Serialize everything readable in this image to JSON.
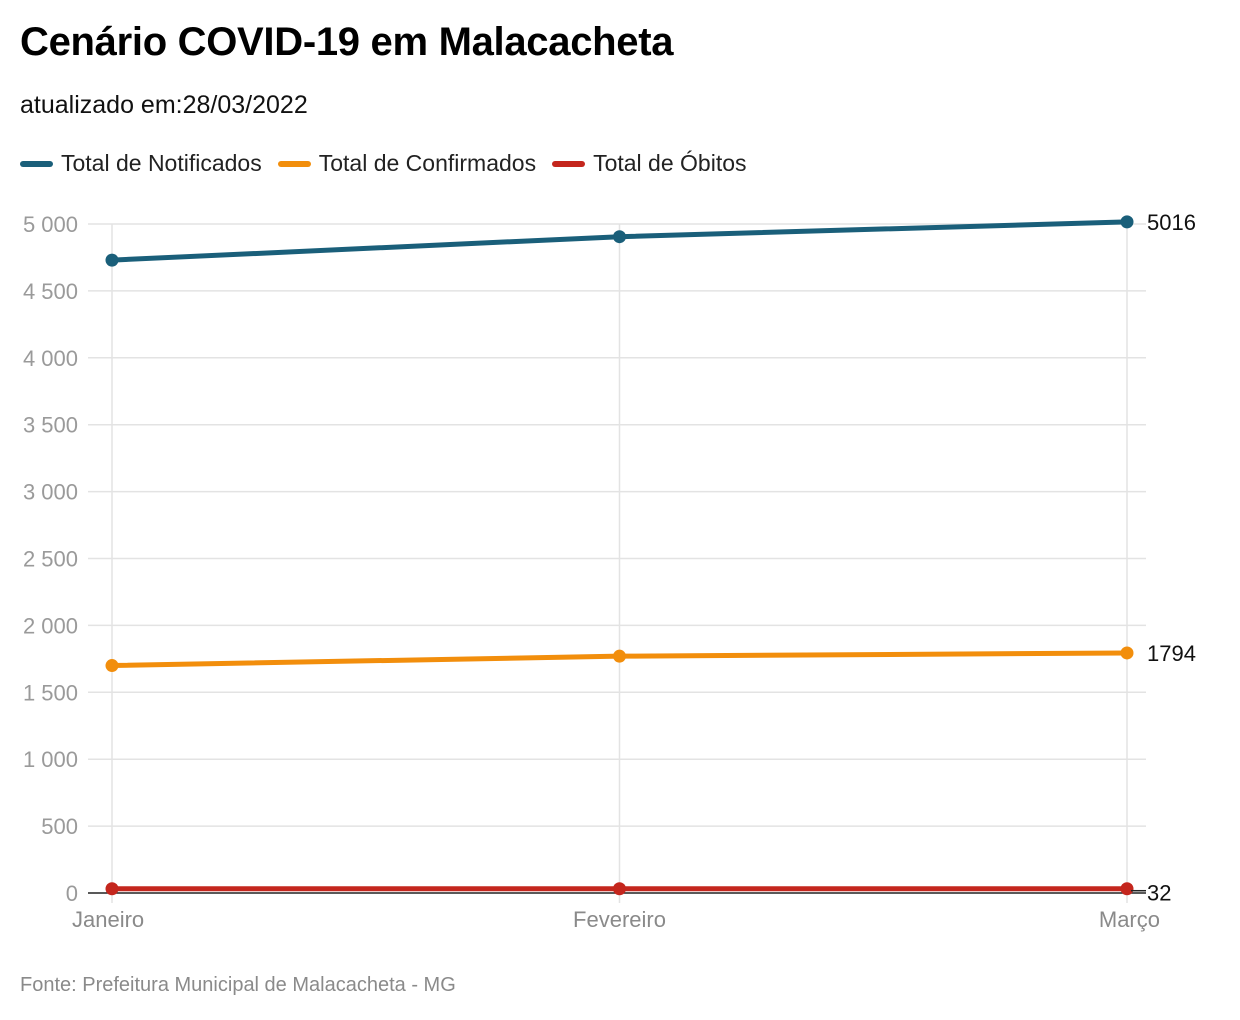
{
  "title": "Cenário COVID-19 em Malacacheta",
  "subtitle": "atualizado em:28/03/2022",
  "source": "Fonte: Prefeitura Municipal de Malacacheta - MG",
  "colors": {
    "notificados": "#1a5f7a",
    "confirmados": "#f28e0c",
    "obitos": "#c4261d",
    "grid": "#e3e3e3",
    "tick": "#9a9a9a"
  },
  "chart_data": {
    "type": "line",
    "categories": [
      "Janeiro",
      "Fevereiro",
      "Março"
    ],
    "ylim": [
      0,
      5000
    ],
    "yticks": [
      0,
      500,
      1000,
      1500,
      2000,
      2500,
      3000,
      3500,
      4000,
      4500,
      5000
    ],
    "ytick_labels": [
      "0",
      "500",
      "1 000",
      "1 500",
      "2 000",
      "2 500",
      "3 000",
      "3 500",
      "4 000",
      "4 500",
      "5 000"
    ],
    "grid": true,
    "legend_position": "top-left",
    "series": [
      {
        "name": "Total de Notificados",
        "color": "#1a5f7a",
        "values": [
          4730,
          4905,
          5016
        ],
        "end_label": "5016"
      },
      {
        "name": "Total de Confirmados",
        "color": "#f28e0c",
        "values": [
          1700,
          1770,
          1794
        ],
        "end_label": "1794"
      },
      {
        "name": "Total de Óbitos",
        "color": "#c4261d",
        "values": [
          32,
          32,
          32
        ],
        "end_label": "32"
      }
    ]
  }
}
